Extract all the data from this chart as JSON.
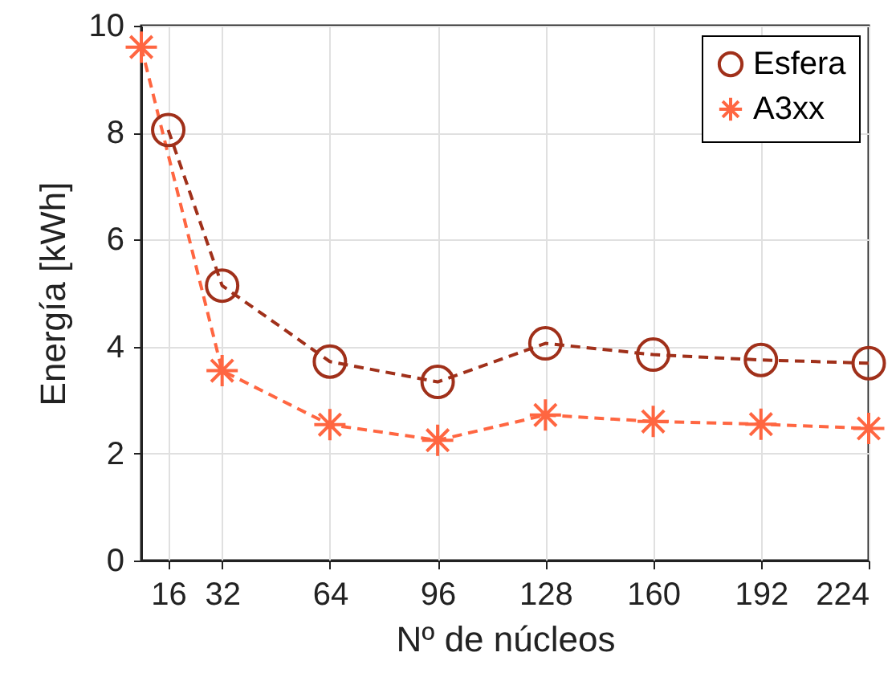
{
  "chart_data": {
    "type": "line",
    "xlabel": "Nº de núcleos",
    "ylabel": "Energía [kWh]",
    "xlim": [
      8,
      224
    ],
    "xticks": [
      16,
      32,
      64,
      96,
      128,
      160,
      192,
      224
    ],
    "ylim": [
      0,
      10
    ],
    "yticks": [
      0,
      2,
      4,
      6,
      8,
      10
    ],
    "grid": true,
    "legend": "top right",
    "line_style": "dashed",
    "series": [
      {
        "name": "Esfera",
        "color": "#a0301a",
        "marker": "circle",
        "x": [
          16,
          32,
          64,
          96,
          128,
          160,
          192,
          224
        ],
        "values": [
          8.05,
          5.14,
          3.72,
          3.34,
          4.06,
          3.85,
          3.75,
          3.69
        ]
      },
      {
        "name": "A3xx",
        "color": "#ff6641",
        "marker": "cross",
        "x": [
          8,
          32,
          64,
          96,
          128,
          160,
          192,
          224
        ],
        "values": [
          9.6,
          3.55,
          2.54,
          2.25,
          2.72,
          2.6,
          2.55,
          2.47
        ]
      }
    ]
  }
}
